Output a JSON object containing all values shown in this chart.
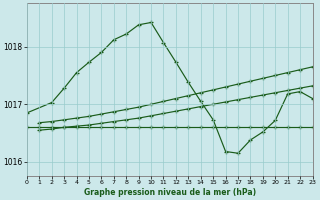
{
  "xlabel": "Graphe pression niveau de la mer (hPa)",
  "background_color": "#cce8ea",
  "grid_color": "#99cccc",
  "line_color": "#1a5c1a",
  "xlim": [
    0,
    23
  ],
  "ylim": [
    1015.75,
    1018.75
  ],
  "yticks": [
    1016,
    1017,
    1018
  ],
  "xticks": [
    0,
    1,
    2,
    3,
    4,
    5,
    6,
    7,
    8,
    9,
    10,
    11,
    12,
    13,
    14,
    15,
    16,
    17,
    18,
    19,
    20,
    21,
    22,
    23
  ],
  "main_x": [
    0,
    2,
    3,
    4,
    5,
    6,
    7,
    8,
    9,
    10,
    11,
    12,
    13,
    14,
    15,
    16,
    17,
    18,
    19,
    20,
    21,
    22,
    23
  ],
  "main_y": [
    1016.85,
    1017.03,
    1017.28,
    1017.55,
    1017.73,
    1017.9,
    1018.12,
    1018.22,
    1018.38,
    1018.42,
    1018.07,
    1017.73,
    1017.38,
    1017.05,
    1016.73,
    1016.18,
    1016.15,
    1016.38,
    1016.52,
    1016.72,
    1017.18,
    1017.22,
    1017.1
  ],
  "flat1_x": [
    0,
    1,
    2,
    3,
    4,
    5,
    6,
    7,
    8,
    9,
    10,
    11,
    12,
    13,
    14,
    15,
    16,
    17,
    18,
    19,
    20,
    21,
    22,
    23
  ],
  "flat1_y": [
    1016.61,
    1016.61,
    1016.61,
    1016.61,
    1016.61,
    1016.61,
    1016.61,
    1016.61,
    1016.61,
    1016.61,
    1016.61,
    1016.61,
    1016.61,
    1016.61,
    1016.61,
    1016.61,
    1016.61,
    1016.61,
    1016.61,
    1016.61,
    1016.61,
    1016.61,
    1016.61,
    1016.61
  ],
  "flat2_x": [
    1,
    2,
    3,
    4,
    5,
    6,
    7,
    8,
    9,
    10,
    11,
    12,
    13,
    14,
    15,
    16,
    17,
    18,
    19,
    20,
    21,
    22,
    23
  ],
  "flat2_y": [
    1016.55,
    1016.57,
    1016.6,
    1016.62,
    1016.64,
    1016.67,
    1016.7,
    1016.73,
    1016.76,
    1016.8,
    1016.84,
    1016.88,
    1016.92,
    1016.96,
    1017.0,
    1017.04,
    1017.08,
    1017.12,
    1017.16,
    1017.2,
    1017.24,
    1017.28,
    1017.32
  ],
  "flat3_x": [
    1,
    2,
    3,
    4,
    5,
    6,
    7,
    8,
    9,
    10,
    11,
    12,
    13,
    14,
    15,
    16,
    17,
    18,
    19,
    20,
    21,
    22,
    23
  ],
  "flat3_y": [
    1016.68,
    1016.7,
    1016.73,
    1016.76,
    1016.79,
    1016.83,
    1016.87,
    1016.91,
    1016.95,
    1017.0,
    1017.05,
    1017.1,
    1017.15,
    1017.2,
    1017.25,
    1017.3,
    1017.35,
    1017.4,
    1017.45,
    1017.5,
    1017.55,
    1017.6,
    1017.65
  ]
}
